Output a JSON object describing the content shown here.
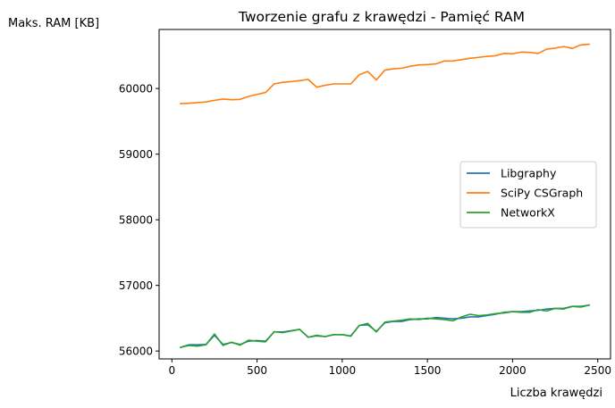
{
  "chart_data": {
    "type": "line",
    "title": "Tworzenie grafu z krawędzi - Pamięć RAM",
    "xlabel": "Liczba krawędzi",
    "ylabel": "Maks. RAM [KB]",
    "xlim": [
      -75,
      2575
    ],
    "ylim": [
      55880,
      60900
    ],
    "xticks": [
      0,
      500,
      1000,
      1500,
      2000,
      2500
    ],
    "xtick_labels": [
      "0",
      "500",
      "1000",
      "1500",
      "2000",
      "2500"
    ],
    "yticks": [
      56000,
      57000,
      58000,
      59000,
      60000
    ],
    "ytick_labels": [
      "56000",
      "57000",
      "58000",
      "59000",
      "60000"
    ],
    "grid": false,
    "legend_position": "center-right",
    "x": [
      50,
      100,
      150,
      200,
      250,
      300,
      350,
      400,
      450,
      500,
      550,
      600,
      650,
      700,
      750,
      800,
      850,
      900,
      950,
      1000,
      1050,
      1100,
      1150,
      1200,
      1250,
      1300,
      1350,
      1400,
      1450,
      1500,
      1550,
      1600,
      1650,
      1700,
      1750,
      1800,
      1850,
      1900,
      1950,
      2000,
      2050,
      2100,
      2150,
      2200,
      2250,
      2300,
      2350,
      2400,
      2450
    ],
    "series": [
      {
        "name": "Libgraphy",
        "color": "#1f77b4",
        "values": [
          56055,
          56095,
          56095,
          56100,
          56240,
          56100,
          56130,
          56100,
          56150,
          56160,
          56150,
          56290,
          56290,
          56310,
          56330,
          56210,
          56230,
          56220,
          56250,
          56250,
          56230,
          56390,
          56400,
          56300,
          56430,
          56450,
          56450,
          56480,
          56490,
          56490,
          56510,
          56500,
          56490,
          56500,
          56520,
          56520,
          56540,
          56560,
          56590,
          56600,
          56600,
          56610,
          56620,
          56640,
          56650,
          56650,
          56680,
          56680,
          56700
        ]
      },
      {
        "name": "SciPy CSGraph",
        "color": "#ff7f0e",
        "values": [
          59770,
          59775,
          59785,
          59795,
          59820,
          59840,
          59830,
          59835,
          59880,
          59910,
          59940,
          60070,
          60095,
          60105,
          60120,
          60140,
          60020,
          60050,
          60070,
          60070,
          60070,
          60210,
          60260,
          60130,
          60280,
          60300,
          60310,
          60340,
          60360,
          60365,
          60375,
          60420,
          60420,
          60440,
          60460,
          60475,
          60490,
          60500,
          60535,
          60530,
          60555,
          60550,
          60535,
          60600,
          60615,
          60640,
          60610,
          60665,
          60675
        ]
      },
      {
        "name": "NetworkX",
        "color": "#2ca02c",
        "values": [
          56055,
          56085,
          56075,
          56095,
          56260,
          56085,
          56135,
          56090,
          56165,
          56150,
          56140,
          56295,
          56280,
          56305,
          56330,
          56210,
          56240,
          56220,
          56250,
          56250,
          56225,
          56390,
          56420,
          56290,
          56440,
          56455,
          56470,
          56490,
          56480,
          56500,
          56490,
          56480,
          56460,
          56520,
          56560,
          56540,
          56550,
          56570,
          56580,
          56600,
          56590,
          56590,
          56630,
          56610,
          56650,
          56640,
          56680,
          56670,
          56700
        ]
      }
    ]
  }
}
